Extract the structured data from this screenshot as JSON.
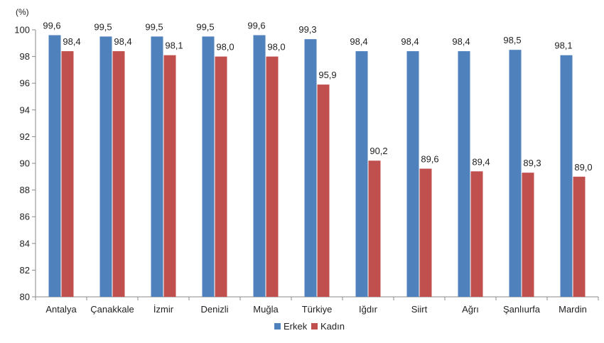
{
  "chart_data": {
    "type": "bar",
    "unit_label": "(%)",
    "categories": [
      "Antalya",
      "Çanakkale",
      "İzmir",
      "Denizli",
      "Muğla",
      "Türkiye",
      "Iğdır",
      "Siirt",
      "Ağrı",
      "Şanlıurfa",
      "Mardin"
    ],
    "series": [
      {
        "name": "Erkek",
        "color": "#4f81bd",
        "values": [
          99.6,
          99.5,
          99.5,
          99.5,
          99.6,
          99.3,
          98.4,
          98.4,
          98.4,
          98.5,
          98.1
        ],
        "labels": [
          "99,6",
          "99,5",
          "99,5",
          "99,5",
          "99,6",
          "99,3",
          "98,4",
          "98,4",
          "98,4",
          "98,5",
          "98,1"
        ]
      },
      {
        "name": "Kadın",
        "color": "#c0504d",
        "values": [
          98.4,
          98.4,
          98.1,
          98.0,
          98.0,
          95.9,
          90.2,
          89.6,
          89.4,
          89.3,
          89.0
        ],
        "labels": [
          "98,4",
          "98,4",
          "98,1",
          "98,0",
          "98,0",
          "95,9",
          "90,2",
          "89,6",
          "89,4",
          "89,3",
          "89,0"
        ]
      }
    ],
    "ylim": [
      80,
      100
    ],
    "yticks": [
      80,
      82,
      84,
      86,
      88,
      90,
      92,
      94,
      96,
      98,
      100
    ],
    "grid": false,
    "legend_position": "bottom-center"
  }
}
